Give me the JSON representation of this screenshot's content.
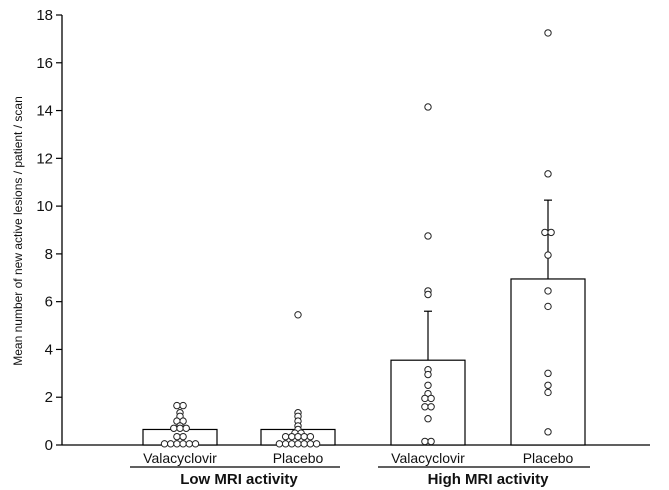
{
  "chart_data": {
    "type": "bar",
    "ylabel": "Mean number of new active lesions / patient / scan",
    "ylim": [
      0,
      18
    ],
    "yticks": [
      0,
      2,
      4,
      6,
      8,
      10,
      12,
      14,
      16,
      18
    ],
    "grid": false,
    "bar_color": "#ffffff",
    "edge_color": "#000000",
    "groups": [
      {
        "label": "Low MRI activity",
        "categories": [
          "Valacyclovir",
          "Placebo"
        ]
      },
      {
        "label": "High MRI activity",
        "categories": [
          "Valacyclovir",
          "Placebo"
        ]
      }
    ],
    "bars": [
      {
        "group": "Low MRI activity",
        "category": "Valacyclovir",
        "mean": 0.65,
        "error_plus": null,
        "points": [
          1.65,
          1.65,
          1.35,
          1.2,
          1.0,
          1.0,
          0.8,
          0.7,
          0.7,
          0.7,
          0.35,
          0.35,
          0.05,
          0.05,
          0.05,
          0.05,
          0.05,
          0.05
        ]
      },
      {
        "group": "Low MRI activity",
        "category": "Placebo",
        "mean": 0.65,
        "error_plus": null,
        "points": [
          5.45,
          1.35,
          1.2,
          1.0,
          0.8,
          0.65,
          0.5,
          0.5,
          0.35,
          0.35,
          0.35,
          0.35,
          0.35,
          0.05,
          0.05,
          0.05,
          0.05,
          0.05,
          0.05,
          0.05
        ]
      },
      {
        "group": "High MRI activity",
        "category": "Valacyclovir",
        "mean": 3.55,
        "error_plus": 5.6,
        "points": [
          14.15,
          8.75,
          6.45,
          6.3,
          3.15,
          2.95,
          2.5,
          2.15,
          1.95,
          1.95,
          1.6,
          1.6,
          1.1,
          0.15,
          0.15
        ]
      },
      {
        "group": "High MRI activity",
        "category": "Placebo",
        "mean": 6.95,
        "error_plus": 10.25,
        "points": [
          17.25,
          11.35,
          8.9,
          8.9,
          7.95,
          6.45,
          5.8,
          3.0,
          2.5,
          2.2,
          0.55
        ]
      }
    ]
  }
}
